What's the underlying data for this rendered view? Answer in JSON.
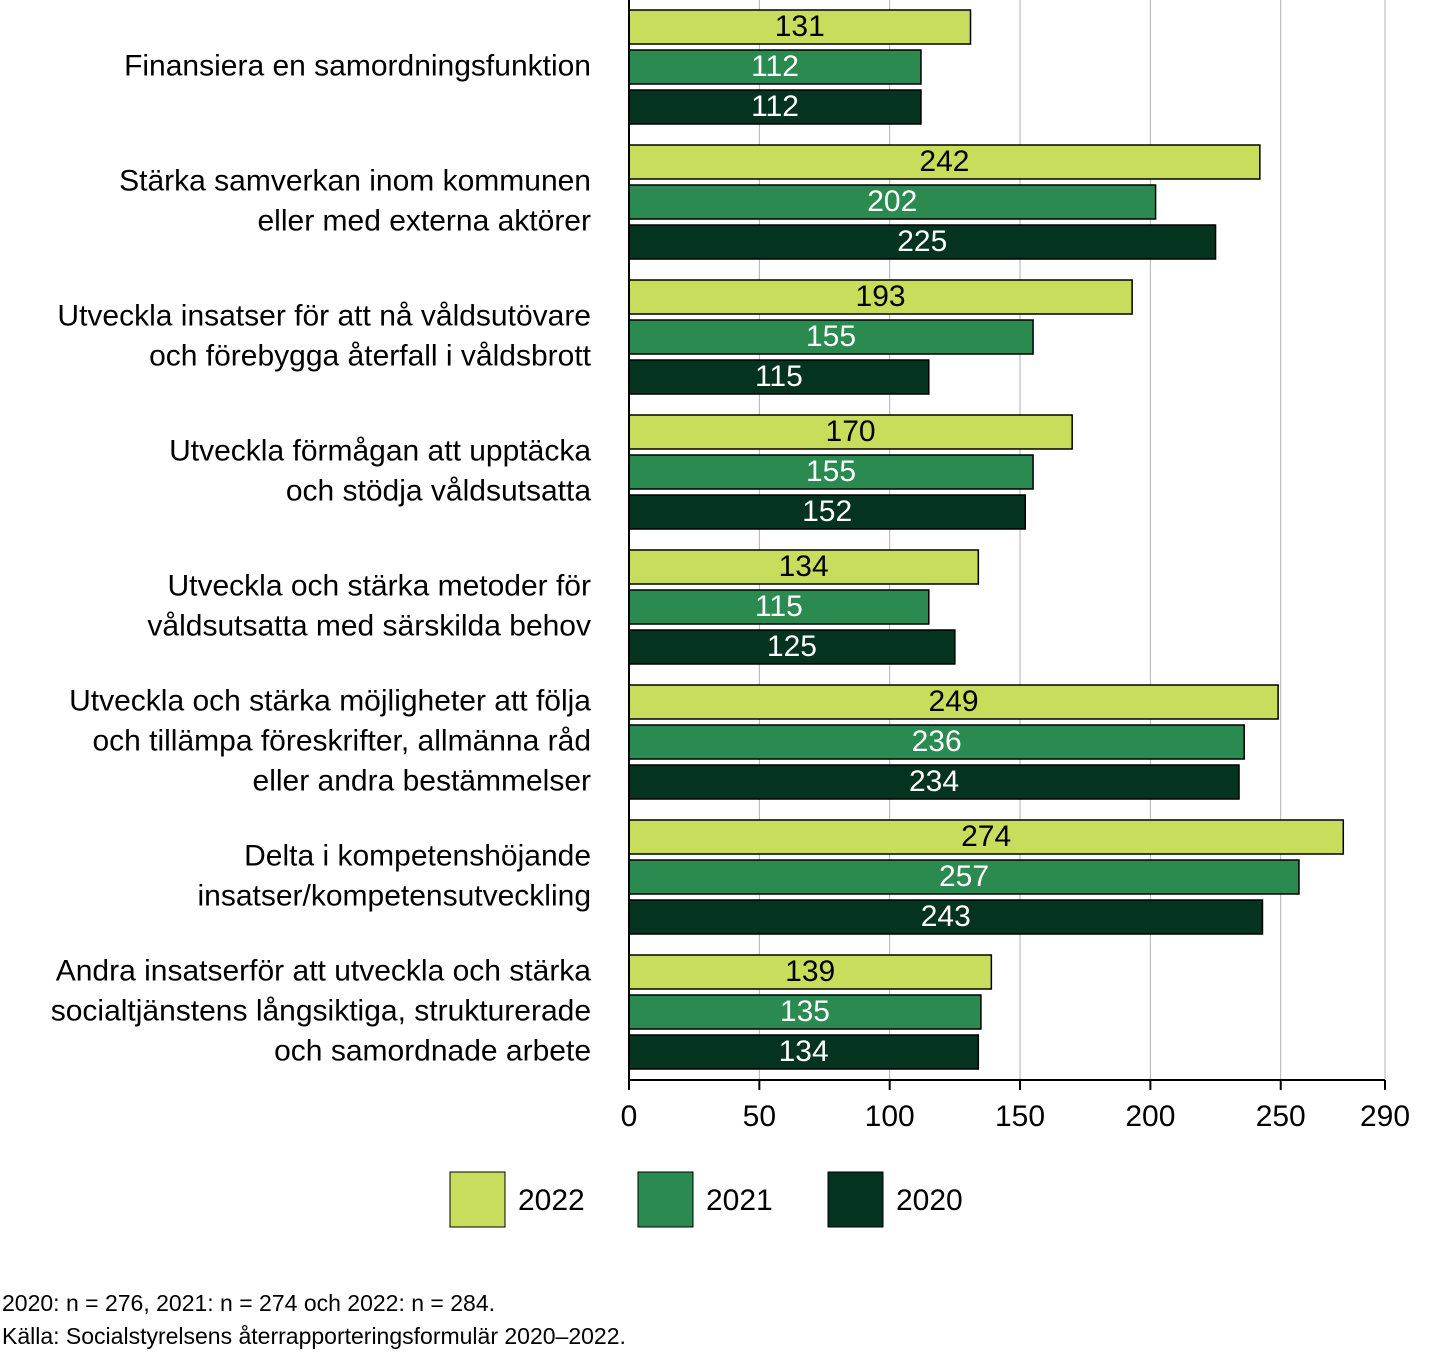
{
  "chart_data": {
    "type": "hbar",
    "categories": [
      [
        "Finansiera en samordningsfunktion"
      ],
      [
        "Stärka samverkan inom kommunen",
        "eller med externa aktörer"
      ],
      [
        "Utveckla insatser för att nå våldsutövare",
        "och förebygga återfall i våldsbrott"
      ],
      [
        "Utveckla förmågan att upptäcka",
        "och stödja våldsutsatta"
      ],
      [
        "Utveckla och stärka metoder för",
        "våldsutsatta med särskilda behov"
      ],
      [
        "Utveckla och stärka möjligheter att följa",
        "och tillämpa föreskrifter, allmänna råd",
        "eller andra bestämmelser"
      ],
      [
        "Delta i kompetenshöjande",
        "insatser/kompetensutveckling"
      ],
      [
        "Andra insatserför att utveckla och stärka",
        "socialtjänstens långsiktiga, strukturerade",
        "och samordnade arbete"
      ]
    ],
    "series": [
      {
        "name": "2022",
        "color": "#c9dd5c",
        "label_color": "#000000",
        "values": [
          131,
          242,
          193,
          170,
          134,
          249,
          274,
          139
        ]
      },
      {
        "name": "2021",
        "color": "#2b8a4f",
        "label_color": "#ffffff",
        "values": [
          112,
          202,
          155,
          155,
          115,
          236,
          257,
          135
        ]
      },
      {
        "name": "2020",
        "color": "#04331f",
        "label_color": "#ffffff",
        "values": [
          112,
          225,
          115,
          152,
          125,
          234,
          243,
          134
        ]
      }
    ],
    "xlim": [
      0,
      290
    ],
    "xticks": [
      0,
      50,
      100,
      150,
      200,
      250,
      290
    ],
    "grid": true,
    "legend": "bottom",
    "notes": [
      "2020: n = 276, 2021: n = 274 och 2022: n = 284.",
      "Källa: Socialstyrelsens återrapporteringsformulär 2020–2022."
    ]
  }
}
